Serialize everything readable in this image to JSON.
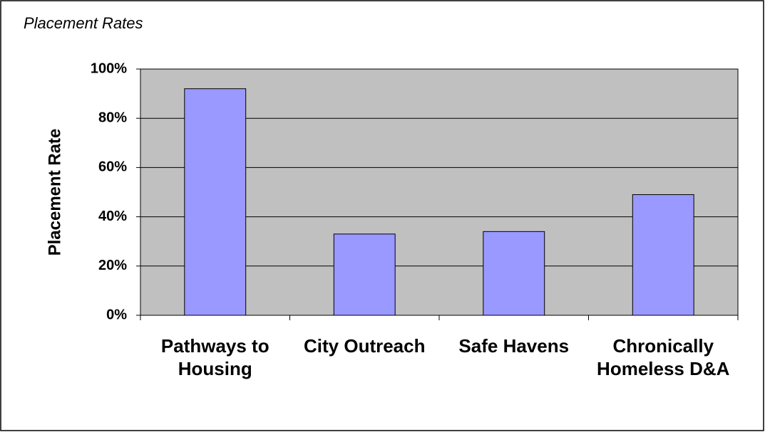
{
  "chart_data": {
    "type": "bar",
    "title": "Placement Rates",
    "y_label": "Placement Rate",
    "categories": [
      "Pathways to Housing",
      "City Outreach",
      "Safe Havens",
      "Chronically Homeless D&A"
    ],
    "values": [
      92,
      33,
      34,
      49
    ],
    "color": "#9999ff",
    "ylim": [
      0,
      100
    ],
    "yticks": [
      {
        "value": 0,
        "label": "0%"
      },
      {
        "value": 20,
        "label": "20%"
      },
      {
        "value": 40,
        "label": "40%"
      },
      {
        "value": 60,
        "label": "60%"
      },
      {
        "value": 80,
        "label": "80%"
      },
      {
        "value": 100,
        "label": "100%"
      }
    ],
    "grid": true
  }
}
